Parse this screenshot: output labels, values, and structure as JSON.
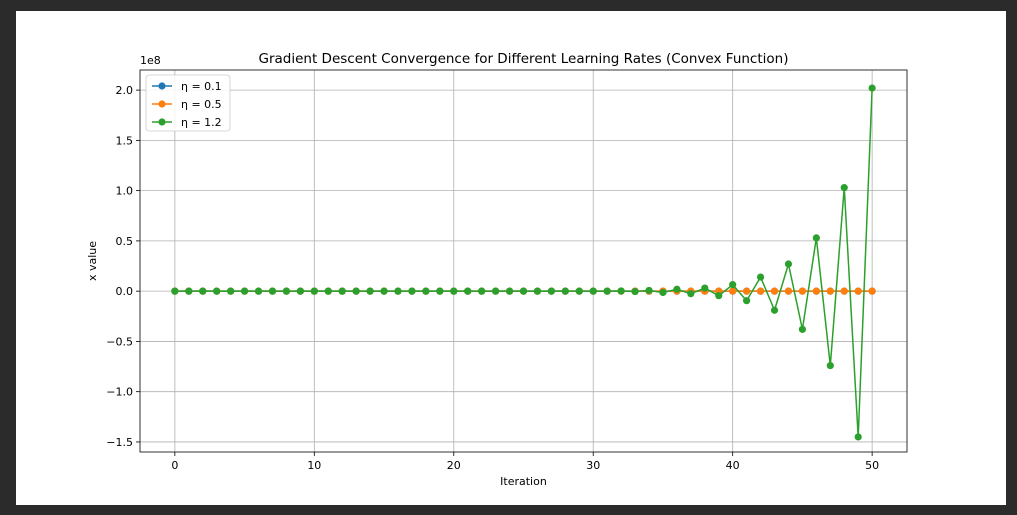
{
  "chart_data": {
    "type": "line",
    "title": "Gradient Descent Convergence for Different Learning Rates (Convex Function)",
    "xlabel": "Iteration",
    "ylabel": "x value",
    "y_scale_label": "1e8",
    "xlim": [
      -2.5,
      52.5
    ],
    "ylim": [
      -1.6,
      2.2
    ],
    "x_ticks": [
      0,
      10,
      20,
      30,
      40,
      50
    ],
    "y_ticks": [
      -1.5,
      -1.0,
      -0.5,
      0.0,
      0.5,
      1.0,
      1.5,
      2.0
    ],
    "x_tick_labels": [
      "0",
      "10",
      "20",
      "30",
      "40",
      "50"
    ],
    "y_tick_labels": [
      "−1.5",
      "−1.0",
      "−0.5",
      "0.0",
      "0.5",
      "1.0",
      "1.5",
      "2.0"
    ],
    "grid": true,
    "legend_position": "top-left",
    "x": [
      0,
      1,
      2,
      3,
      4,
      5,
      6,
      7,
      8,
      9,
      10,
      11,
      12,
      13,
      14,
      15,
      16,
      17,
      18,
      19,
      20,
      21,
      22,
      23,
      24,
      25,
      26,
      27,
      28,
      29,
      30,
      31,
      32,
      33,
      34,
      35,
      36,
      37,
      38,
      39,
      40,
      41,
      42,
      43,
      44,
      45,
      46,
      47,
      48,
      49,
      50
    ],
    "series": [
      {
        "name": "η = 0.1",
        "color": "#1f77b4",
        "values": [
          0,
          0,
          0,
          0,
          0,
          0,
          0,
          0,
          0,
          0,
          0,
          0,
          0,
          0,
          0,
          0,
          0,
          0,
          0,
          0,
          0,
          0,
          0,
          0,
          0,
          0,
          0,
          0,
          0,
          0,
          0,
          0,
          0,
          0,
          0,
          0,
          0,
          0,
          0,
          0,
          0,
          0,
          0,
          0,
          0,
          0,
          0,
          0,
          0,
          0,
          0
        ]
      },
      {
        "name": "η = 0.5",
        "color": "#ff7f0e",
        "values": [
          0,
          0,
          0,
          0,
          0,
          0,
          0,
          0,
          0,
          0,
          0,
          0,
          0,
          0,
          0,
          0,
          0,
          0,
          0,
          0,
          0,
          0,
          0,
          0,
          0,
          0,
          0,
          0,
          0,
          0,
          0,
          0,
          0,
          0,
          0,
          0,
          0,
          0,
          0,
          0,
          0,
          0,
          0,
          0,
          0,
          0,
          0,
          0,
          0,
          0,
          0
        ]
      },
      {
        "name": "η = 1.2",
        "color": "#2ca02c",
        "values": [
          0,
          0,
          0,
          0,
          0,
          0,
          0,
          0,
          0,
          0,
          0,
          0,
          0,
          0,
          0,
          0,
          0,
          0,
          0,
          0,
          0,
          0,
          0,
          0,
          0,
          0,
          0,
          0,
          0,
          0,
          0,
          0,
          0.002,
          -0.004,
          0.007,
          -0.013,
          0.019,
          -0.025,
          0.031,
          -0.045,
          0.065,
          -0.095,
          0.14,
          -0.19,
          0.27,
          -0.38,
          0.53,
          -0.74,
          1.03,
          -1.45,
          2.02
        ]
      }
    ]
  }
}
